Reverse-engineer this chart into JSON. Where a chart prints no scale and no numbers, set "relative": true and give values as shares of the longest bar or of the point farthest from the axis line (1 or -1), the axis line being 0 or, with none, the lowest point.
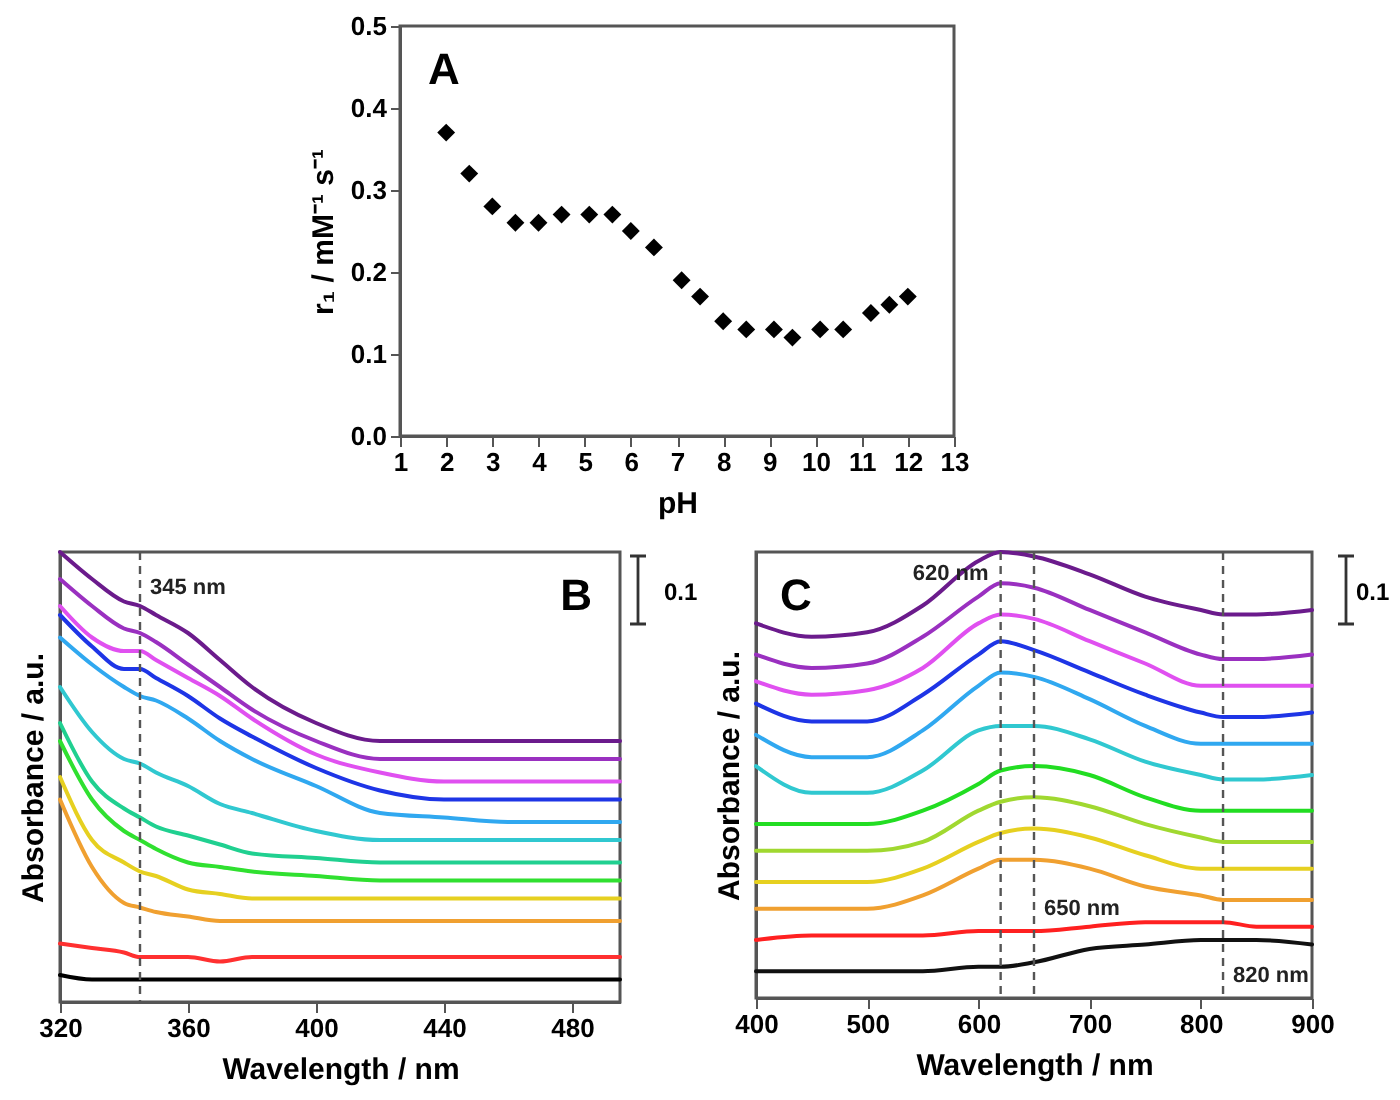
{
  "chart_data": [
    {
      "type": "scatter",
      "title": "A",
      "xlabel": "pH",
      "ylabel": "r₁ / mM⁻¹ s⁻¹",
      "marker": "diamond",
      "xlim": [
        1,
        13
      ],
      "xticks": [
        1,
        2,
        3,
        4,
        5,
        6,
        7,
        8,
        9,
        10,
        11,
        12,
        13
      ],
      "ylim": [
        0,
        0.5
      ],
      "yticks": [
        {
          "value": 0,
          "label": "0.0"
        },
        0.1,
        0.2,
        0.3,
        0.4,
        0.5
      ],
      "x": [
        2,
        2.5,
        3,
        3.5,
        4,
        4.5,
        5.1,
        5.6,
        6,
        6.5,
        7.1,
        7.5,
        8,
        8.5,
        9.1,
        9.5,
        10.1,
        10.6,
        11.2,
        11.6,
        12
      ],
      "series": [
        {
          "color": "#000000",
          "values": [
            0.37,
            0.32,
            0.28,
            0.26,
            0.26,
            0.27,
            0.27,
            0.27,
            0.25,
            0.23,
            0.19,
            0.17,
            0.14,
            0.13,
            0.13,
            0.12,
            0.13,
            0.13,
            0.15,
            0.16,
            0.17
          ]
        }
      ]
    },
    {
      "type": "line",
      "title": "B",
      "xlabel": "Wavelength / nm",
      "ylabel": "Absorbance / a.u.",
      "relative": true,
      "line_style": "solid",
      "xlim": [
        320,
        495
      ],
      "xticks": [
        320,
        360,
        400,
        440,
        480
      ],
      "x": [
        320,
        330,
        340,
        345,
        350,
        360,
        370,
        380,
        400,
        420,
        440,
        460,
        495
      ],
      "series": [
        {
          "color": "#6b1b8c",
          "values": [
            1.0,
            0.94,
            0.89,
            0.88,
            0.86,
            0.82,
            0.76,
            0.7,
            0.62,
            0.58,
            0.58,
            0.58,
            0.58
          ]
        },
        {
          "color": "#9a30c0",
          "values": [
            0.94,
            0.88,
            0.83,
            0.82,
            0.8,
            0.75,
            0.7,
            0.65,
            0.58,
            0.54,
            0.54,
            0.54,
            0.54
          ]
        },
        {
          "color": "#e050f0",
          "values": [
            0.88,
            0.81,
            0.78,
            0.78,
            0.76,
            0.72,
            0.68,
            0.63,
            0.55,
            0.51,
            0.49,
            0.49,
            0.49
          ]
        },
        {
          "color": "#1e35e6",
          "values": [
            0.86,
            0.79,
            0.74,
            0.74,
            0.72,
            0.68,
            0.63,
            0.59,
            0.52,
            0.47,
            0.45,
            0.45,
            0.45
          ]
        },
        {
          "color": "#30a8f0",
          "values": [
            0.81,
            0.75,
            0.7,
            0.68,
            0.67,
            0.63,
            0.58,
            0.54,
            0.48,
            0.42,
            0.41,
            0.4,
            0.4
          ]
        },
        {
          "color": "#30c8d0",
          "values": [
            0.7,
            0.6,
            0.54,
            0.53,
            0.51,
            0.48,
            0.44,
            0.42,
            0.38,
            0.36,
            0.36,
            0.36,
            0.36
          ]
        },
        {
          "color": "#20d090",
          "values": [
            0.62,
            0.49,
            0.43,
            0.41,
            0.39,
            0.37,
            0.35,
            0.33,
            0.32,
            0.31,
            0.31,
            0.31,
            0.31
          ]
        },
        {
          "color": "#30e030",
          "values": [
            0.58,
            0.45,
            0.38,
            0.36,
            0.34,
            0.31,
            0.3,
            0.29,
            0.28,
            0.27,
            0.27,
            0.27,
            0.27
          ]
        },
        {
          "color": "#e6d020",
          "values": [
            0.5,
            0.36,
            0.31,
            0.29,
            0.28,
            0.25,
            0.24,
            0.23,
            0.23,
            0.23,
            0.23,
            0.23,
            0.23
          ]
        },
        {
          "color": "#f0a030",
          "values": [
            0.45,
            0.3,
            0.22,
            0.21,
            0.2,
            0.19,
            0.18,
            0.18,
            0.18,
            0.18,
            0.18,
            0.18,
            0.18
          ]
        },
        {
          "color": "#ff3030",
          "values": [
            0.13,
            0.12,
            0.11,
            0.1,
            0.1,
            0.1,
            0.09,
            0.1,
            0.1,
            0.1,
            0.1,
            0.1,
            0.1
          ]
        },
        {
          "color": "#000000",
          "values": [
            0.06,
            0.05,
            0.05,
            0.05,
            0.05,
            0.05,
            0.05,
            0.05,
            0.05,
            0.05,
            0.05,
            0.05,
            0.05
          ]
        }
      ],
      "ref_lines": [
        {
          "axis": "x",
          "value": 345,
          "label": "345 nm",
          "line_style": "dashed",
          "color": "#555555"
        }
      ],
      "annotations": [
        "0.1"
      ]
    },
    {
      "type": "line",
      "title": "C",
      "xlabel": "Wavelength / nm",
      "ylabel": "Absorbance / a.u.",
      "relative": true,
      "line_style": "solid",
      "xlim": [
        400,
        900
      ],
      "xticks": [
        400,
        500,
        600,
        700,
        800,
        900
      ],
      "x": [
        400,
        450,
        500,
        550,
        600,
        620,
        650,
        700,
        750,
        800,
        820,
        850,
        900
      ],
      "series": [
        {
          "color": "#6b1b8c",
          "values": [
            0.84,
            0.81,
            0.82,
            0.88,
            0.98,
            1.0,
            0.99,
            0.95,
            0.9,
            0.87,
            0.86,
            0.86,
            0.87
          ]
        },
        {
          "color": "#9a30c0",
          "values": [
            0.77,
            0.74,
            0.75,
            0.81,
            0.9,
            0.93,
            0.92,
            0.87,
            0.82,
            0.77,
            0.76,
            0.76,
            0.77
          ]
        },
        {
          "color": "#e050f0",
          "values": [
            0.71,
            0.68,
            0.69,
            0.74,
            0.84,
            0.86,
            0.85,
            0.8,
            0.75,
            0.7,
            0.7,
            0.7,
            0.7
          ]
        },
        {
          "color": "#1e35e6",
          "values": [
            0.66,
            0.62,
            0.62,
            0.68,
            0.77,
            0.8,
            0.78,
            0.73,
            0.68,
            0.64,
            0.63,
            0.63,
            0.64
          ]
        },
        {
          "color": "#30a8f0",
          "values": [
            0.59,
            0.54,
            0.54,
            0.6,
            0.7,
            0.73,
            0.72,
            0.67,
            0.61,
            0.57,
            0.57,
            0.57,
            0.57
          ]
        },
        {
          "color": "#30c8d0",
          "values": [
            0.52,
            0.46,
            0.46,
            0.51,
            0.6,
            0.61,
            0.61,
            0.58,
            0.53,
            0.5,
            0.49,
            0.49,
            0.5
          ]
        },
        {
          "color": "#22dd22",
          "values": [
            0.39,
            0.39,
            0.39,
            0.42,
            0.48,
            0.51,
            0.52,
            0.5,
            0.45,
            0.42,
            0.42,
            0.42,
            0.42
          ]
        },
        {
          "color": "#a0d830",
          "values": [
            0.33,
            0.33,
            0.33,
            0.35,
            0.42,
            0.44,
            0.45,
            0.43,
            0.39,
            0.36,
            0.35,
            0.35,
            0.35
          ]
        },
        {
          "color": "#e6d020",
          "values": [
            0.26,
            0.26,
            0.26,
            0.29,
            0.35,
            0.37,
            0.38,
            0.36,
            0.32,
            0.29,
            0.29,
            0.29,
            0.29
          ]
        },
        {
          "color": "#f0a030",
          "values": [
            0.2,
            0.2,
            0.2,
            0.23,
            0.29,
            0.31,
            0.31,
            0.29,
            0.25,
            0.23,
            0.22,
            0.22,
            0.22
          ]
        },
        {
          "color": "#ff2020",
          "values": [
            0.13,
            0.14,
            0.14,
            0.14,
            0.15,
            0.15,
            0.15,
            0.16,
            0.17,
            0.17,
            0.17,
            0.16,
            0.16
          ]
        },
        {
          "color": "#111111",
          "values": [
            0.06,
            0.06,
            0.06,
            0.06,
            0.07,
            0.07,
            0.08,
            0.11,
            0.12,
            0.13,
            0.13,
            0.13,
            0.12
          ]
        }
      ],
      "ref_lines": [
        {
          "axis": "x",
          "value": 620,
          "label": "620 nm",
          "line_style": "dashed",
          "color": "#555555"
        },
        {
          "axis": "x",
          "value": 650,
          "label": "650 nm",
          "line_style": "dashed",
          "color": "#555555"
        },
        {
          "axis": "x",
          "value": 820,
          "label": "820 nm",
          "line_style": "dashed",
          "color": "#555555"
        }
      ],
      "annotations": [
        "0.1"
      ]
    }
  ]
}
